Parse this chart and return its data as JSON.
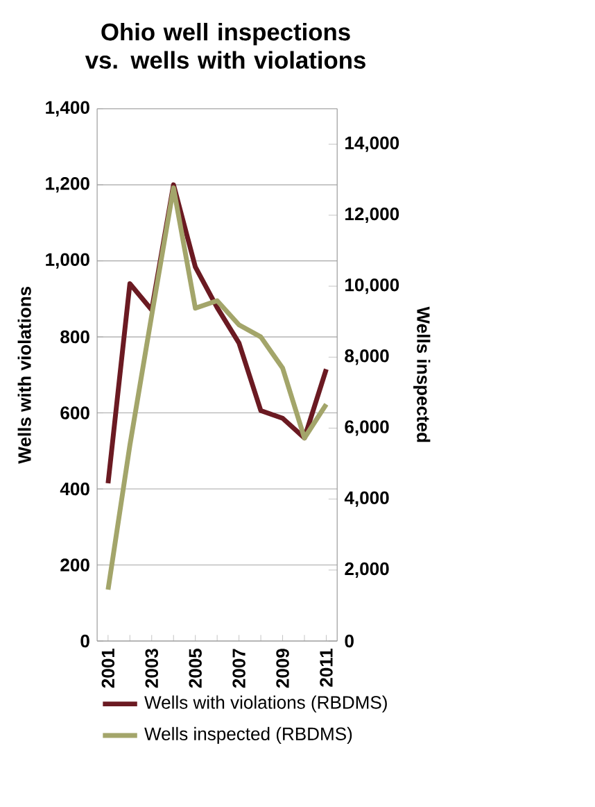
{
  "chart_data": {
    "type": "line",
    "title": "Ohio well inspections vs. wells with violations",
    "categories": [
      "2001",
      null,
      "2003",
      null,
      "2005",
      null,
      "2007",
      null,
      "2009",
      null,
      "2011"
    ],
    "series": [
      {
        "name": "Wells with violations (RBDMS)",
        "color": "#6b1a22",
        "values": [
          415,
          940,
          871,
          1200,
          984,
          877,
          784,
          606,
          586,
          534,
          715
        ]
      },
      {
        "name": "Wells inspected (RBDMS)",
        "color": "#a3a56a",
        "axis": "y2",
        "values": [
          1450,
          5520,
          9180,
          12770,
          9380,
          9590,
          8910,
          8570,
          7690,
          5720,
          6670
        ]
      }
    ],
    "ylabel": "Wells with violations",
    "y2label": "Wells inspected",
    "ylim": [
      0,
      1400
    ],
    "yticks": [
      {
        "value": 0,
        "label": "0"
      },
      {
        "value": 200,
        "label": "200"
      },
      {
        "value": 400,
        "label": "400"
      },
      {
        "value": 600,
        "label": "600"
      },
      {
        "value": 800,
        "label": "800"
      },
      {
        "value": 1000,
        "label": "1,000"
      },
      {
        "value": 1200,
        "label": "1,200"
      },
      {
        "value": 1400,
        "label": "1,400"
      }
    ],
    "y2lim": [
      0,
      15000
    ],
    "y2ticks": [
      {
        "value": 0,
        "label": "0"
      },
      {
        "value": 2000,
        "label": "2,000"
      },
      {
        "value": 4000,
        "label": "4,000"
      },
      {
        "value": 6000,
        "label": "6,000"
      },
      {
        "value": 8000,
        "label": "8,000"
      },
      {
        "value": 10000,
        "label": "10,000"
      },
      {
        "value": 12000,
        "label": "12,000"
      },
      {
        "value": 14000,
        "label": "14,000"
      }
    ],
    "grid": "y",
    "legend": "bottom",
    "marker": "none",
    "line_style": "solid"
  }
}
